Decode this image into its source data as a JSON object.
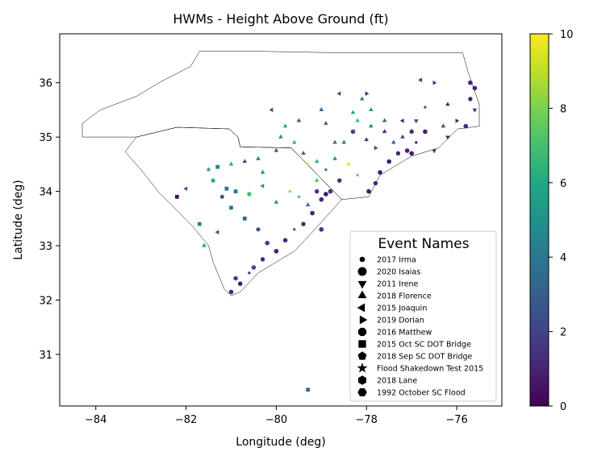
{
  "chart_data": {
    "type": "scatter",
    "title": "HWMs - Height Above Ground (ft)",
    "xlabel": "Longitude (deg)",
    "ylabel": "Latitude (deg)",
    "xlim": [
      -84.8,
      -75.0
    ],
    "ylim": [
      30.05,
      36.9
    ],
    "xticks": [
      -84,
      -82,
      -80,
      -78,
      -76
    ],
    "xtick_labels": [
      "−84",
      "−82",
      "−80",
      "−78",
      "−76"
    ],
    "yticks": [
      31,
      32,
      33,
      34,
      35,
      36
    ],
    "ytick_labels": [
      "31",
      "32",
      "33",
      "34",
      "35",
      "36"
    ],
    "grid": false,
    "colorbar": {
      "colormap": "viridis",
      "range": [
        0,
        10
      ],
      "ticks": [
        0,
        2,
        4,
        6,
        8,
        10
      ],
      "tick_labels": [
        "0",
        "2",
        "4",
        "6",
        "8",
        "10"
      ]
    },
    "legend": {
      "title": "Event Names",
      "placement": "lower-right",
      "entries": [
        {
          "name": "2017 Irma",
          "marker": "small-circle"
        },
        {
          "name": "2020 Isaias",
          "marker": "circle"
        },
        {
          "name": "2011 Irene",
          "marker": "triangle-down"
        },
        {
          "name": "2018 Florence",
          "marker": "triangle-up"
        },
        {
          "name": "2015 Joaquin",
          "marker": "triangle-left"
        },
        {
          "name": "2019 Dorian",
          "marker": "triangle-right"
        },
        {
          "name": "2016 Matthew",
          "marker": "octagon"
        },
        {
          "name": "2015 Oct SC DOT Bridge",
          "marker": "square"
        },
        {
          "name": "2018 Sep SC DOT Bridge",
          "marker": "pentagon"
        },
        {
          "name": "Flood Shakedown Test 2015",
          "marker": "star"
        },
        {
          "name": "2018 Lane",
          "marker": "hexagon"
        },
        {
          "name": "1992 October SC Flood",
          "marker": "hexagon-flat"
        }
      ]
    },
    "boundaries": {
      "north_carolina": [
        [
          -84.3,
          35.0
        ],
        [
          -84.3,
          35.25
        ],
        [
          -83.9,
          35.5
        ],
        [
          -83.1,
          35.75
        ],
        [
          -82.6,
          36.0
        ],
        [
          -81.9,
          36.3
        ],
        [
          -81.7,
          36.58
        ],
        [
          -80.5,
          36.58
        ],
        [
          -78.5,
          36.55
        ],
        [
          -76.5,
          36.55
        ],
        [
          -75.87,
          36.55
        ],
        [
          -75.75,
          36.2
        ],
        [
          -75.5,
          35.6
        ],
        [
          -75.5,
          35.2
        ],
        [
          -75.98,
          35.15
        ],
        [
          -76.4,
          34.8
        ],
        [
          -77.0,
          34.65
        ],
        [
          -77.7,
          34.3
        ],
        [
          -77.95,
          33.9
        ],
        [
          -78.55,
          33.85
        ],
        [
          -79.67,
          34.8
        ],
        [
          -80.8,
          34.82
        ],
        [
          -80.85,
          35.0
        ],
        [
          -81.05,
          35.15
        ],
        [
          -82.2,
          35.18
        ],
        [
          -83.1,
          35.0
        ],
        [
          -84.3,
          35.0
        ]
      ],
      "south_carolina": [
        [
          -83.35,
          34.73
        ],
        [
          -83.1,
          35.0
        ],
        [
          -82.2,
          35.18
        ],
        [
          -81.05,
          35.15
        ],
        [
          -80.85,
          35.0
        ],
        [
          -80.8,
          34.82
        ],
        [
          -79.67,
          34.8
        ],
        [
          -78.55,
          33.85
        ],
        [
          -79.2,
          33.25
        ],
        [
          -79.6,
          32.9
        ],
        [
          -80.4,
          32.5
        ],
        [
          -80.8,
          32.15
        ],
        [
          -81.0,
          32.08
        ],
        [
          -81.15,
          32.2
        ],
        [
          -81.4,
          32.7
        ],
        [
          -81.5,
          33.0
        ],
        [
          -81.85,
          33.35
        ],
        [
          -82.2,
          33.65
        ],
        [
          -82.6,
          33.98
        ],
        [
          -83.0,
          34.4
        ],
        [
          -83.35,
          34.73
        ]
      ]
    },
    "points": [
      [
        -75.7,
        36.0,
        1.0,
        "isaias"
      ],
      [
        -75.6,
        35.9,
        0.9,
        "isaias"
      ],
      [
        -75.7,
        35.7,
        0.8,
        "matthew"
      ],
      [
        -75.6,
        35.5,
        1.3,
        "irene"
      ],
      [
        -75.8,
        35.2,
        1.1,
        "isaias"
      ],
      [
        -76.5,
        36.0,
        1.8,
        "dorian"
      ],
      [
        -76.8,
        36.05,
        1.5,
        "joaquin"
      ],
      [
        -76.2,
        35.6,
        0.9,
        "florence"
      ],
      [
        -76.0,
        35.3,
        1.2,
        "dorian"
      ],
      [
        -76.7,
        35.55,
        2.5,
        "irma"
      ],
      [
        -76.7,
        35.1,
        0.7,
        "isaias"
      ],
      [
        -77.0,
        35.1,
        1.2,
        "matthew"
      ],
      [
        -76.9,
        34.9,
        0.8,
        "irma"
      ],
      [
        -77.1,
        34.75,
        0.9,
        "isaias"
      ],
      [
        -77.3,
        34.7,
        1.0,
        "matthew"
      ],
      [
        -77.5,
        34.55,
        0.7,
        "isaias"
      ],
      [
        -77.7,
        34.35,
        0.8,
        "isaias"
      ],
      [
        -77.8,
        34.15,
        1.1,
        "matthew"
      ],
      [
        -77.95,
        34.0,
        0.6,
        "isaias"
      ],
      [
        -76.5,
        34.75,
        1.5,
        "irene"
      ],
      [
        -77.2,
        35.0,
        1.8,
        "florence"
      ],
      [
        -77.6,
        35.3,
        3.2,
        "florence"
      ],
      [
        -77.9,
        35.5,
        5.5,
        "florence"
      ],
      [
        -78.2,
        35.3,
        6.8,
        "florence"
      ],
      [
        -78.3,
        35.1,
        2.1,
        "isaias"
      ],
      [
        -78.0,
        34.95,
        1.6,
        "florence"
      ],
      [
        -78.5,
        34.9,
        3.8,
        "florence"
      ],
      [
        -78.7,
        34.6,
        5.2,
        "florence"
      ],
      [
        -78.9,
        34.4,
        4.4,
        "irma"
      ],
      [
        -79.1,
        34.2,
        7.2,
        "florence"
      ],
      [
        -79.3,
        34.5,
        9.3,
        "irma"
      ],
      [
        -78.4,
        34.5,
        9.5,
        "florence"
      ],
      [
        -78.1,
        35.7,
        4.1,
        "florence"
      ],
      [
        -78.6,
        35.8,
        2.3,
        "joaquin"
      ],
      [
        -79.0,
        35.5,
        3.1,
        "florence"
      ],
      [
        -79.5,
        35.3,
        2.8,
        "florence"
      ],
      [
        -79.8,
        35.2,
        5.9,
        "florence"
      ],
      [
        -79.9,
        35.0,
        4.7,
        "florence"
      ],
      [
        -79.6,
        34.9,
        6.5,
        "florence"
      ],
      [
        -79.4,
        34.7,
        3.3,
        "florence"
      ],
      [
        -78.6,
        34.2,
        1.2,
        "matthew"
      ],
      [
        -78.8,
        34.0,
        1.5,
        "isaias"
      ],
      [
        -79.0,
        33.85,
        1.0,
        "isaias"
      ],
      [
        -79.2,
        33.6,
        0.9,
        "isaias"
      ],
      [
        -79.4,
        33.4,
        1.1,
        "matthew"
      ],
      [
        -79.6,
        33.3,
        2.4,
        "irma"
      ],
      [
        -79.8,
        33.1,
        1.3,
        "isaias"
      ],
      [
        -80.0,
        32.9,
        0.8,
        "isaias"
      ],
      [
        -80.3,
        32.75,
        1.0,
        "matthew"
      ],
      [
        -80.6,
        32.5,
        1.4,
        "irma"
      ],
      [
        -80.8,
        32.3,
        0.7,
        "isaias"
      ],
      [
        -81.0,
        32.15,
        1.2,
        "isaias"
      ],
      [
        -80.9,
        32.4,
        1.8,
        "matthew"
      ],
      [
        -80.5,
        32.6,
        2.1,
        "isaias"
      ],
      [
        -79.3,
        33.75,
        3.5,
        "florence"
      ],
      [
        -79.5,
        33.9,
        6.9,
        "irma"
      ],
      [
        -79.7,
        34.0,
        8.2,
        "irma"
      ],
      [
        -80.0,
        33.8,
        5.1,
        "florence"
      ],
      [
        -80.3,
        34.1,
        4.8,
        "joaquin"
      ],
      [
        -80.6,
        33.95,
        7.0,
        "lane"
      ],
      [
        -80.9,
        34.0,
        4.2,
        "sc-oct"
      ],
      [
        -81.1,
        34.05,
        3.6,
        "sc-oct"
      ],
      [
        -81.2,
        33.9,
        2.9,
        "sc-sep"
      ],
      [
        -81.4,
        34.2,
        6.1,
        "sc-sep"
      ],
      [
        -81.5,
        34.4,
        5.5,
        "flood-test"
      ],
      [
        -81.0,
        33.7,
        4.0,
        "sc-oct"
      ],
      [
        -80.7,
        33.5,
        3.2,
        "sc-oct"
      ],
      [
        -80.4,
        33.3,
        2.7,
        "sc-sep"
      ],
      [
        -80.2,
        33.05,
        1.9,
        "isaias"
      ],
      [
        -81.3,
        33.25,
        2.2,
        "joaquin"
      ],
      [
        -81.6,
        33.0,
        5.6,
        "florence"
      ],
      [
        -81.7,
        33.4,
        4.3,
        "sc-oct"
      ],
      [
        -82.0,
        34.05,
        2.5,
        "joaquin"
      ],
      [
        -82.2,
        33.9,
        0.3,
        "sc-oct"
      ],
      [
        -81.0,
        34.5,
        6.0,
        "florence"
      ],
      [
        -79.3,
        30.35,
        3.4,
        "sc-oct"
      ],
      [
        -78.9,
        35.25,
        3.0,
        "florence"
      ],
      [
        -78.3,
        35.45,
        5.8,
        "florence"
      ],
      [
        -77.6,
        35.1,
        1.0,
        "florence"
      ],
      [
        -77.8,
        34.8,
        2.4,
        "dorian"
      ],
      [
        -78.2,
        34.3,
        7.5,
        "irma"
      ],
      [
        -77.4,
        34.9,
        2.9,
        "florence"
      ],
      [
        -76.9,
        35.3,
        1.7,
        "irene"
      ],
      [
        -77.9,
        35.2,
        4.6,
        "florence"
      ],
      [
        -78.7,
        34.9,
        3.7,
        "florence"
      ],
      [
        -79.1,
        34.55,
        6.3,
        "florence"
      ],
      [
        -80.3,
        34.35,
        5.0,
        "florence"
      ],
      [
        -80.7,
        34.55,
        1.9,
        "florence"
      ],
      [
        -81.3,
        34.45,
        4.7,
        "sc-oct"
      ],
      [
        -80.1,
        35.5,
        2.0,
        "joaquin"
      ],
      [
        -76.2,
        35.0,
        0.9,
        "irene"
      ],
      [
        -76.3,
        35.2,
        2.0,
        "florence"
      ],
      [
        -78.9,
        33.95,
        0.5,
        "isaias"
      ],
      [
        -79.1,
        34.0,
        1.6,
        "matthew"
      ],
      [
        -80.4,
        34.6,
        3.9,
        "florence"
      ],
      [
        -80.0,
        34.75,
        2.6,
        "florence"
      ],
      [
        -79.0,
        33.3,
        1.4,
        "isaias"
      ],
      [
        -77.0,
        34.7,
        0.8,
        "isaias"
      ],
      [
        -77.2,
        35.3,
        1.2,
        "joaquin"
      ],
      [
        -78.0,
        35.8,
        1.4,
        "dorian"
      ]
    ]
  }
}
